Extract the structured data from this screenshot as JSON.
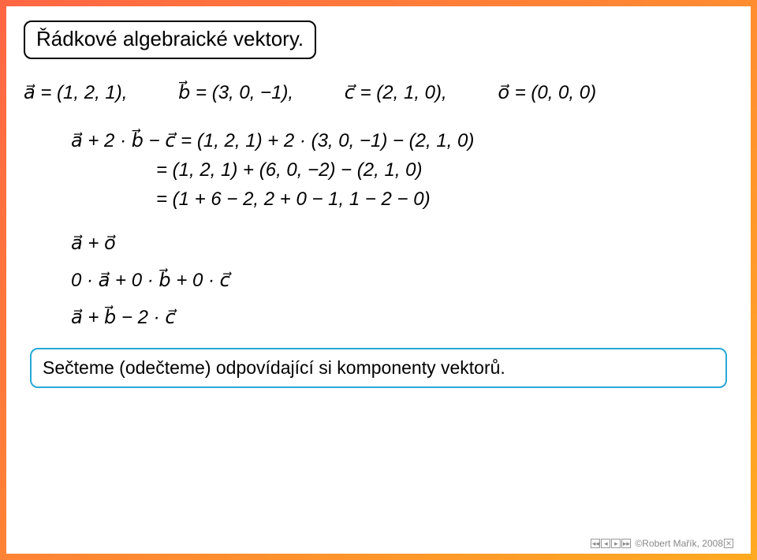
{
  "title": "Řádkové algebraické vektory.",
  "definitions": {
    "a": "a⃗ = (1, 2, 1),",
    "b": "b⃗ = (3, 0, −1),",
    "c": "c⃗ = (2, 1, 0),",
    "o": "o⃗ = (0, 0, 0)"
  },
  "equation": {
    "row1": "a⃗ + 2 · b⃗ − c⃗ = (1, 2, 1) + 2 · (3, 0, −1) − (2, 1, 0)",
    "row2": "= (1, 2, 1) + (6, 0, −2) − (2, 1, 0)",
    "row3": "= (1 + 6 − 2, 2 + 0 − 1, 1 − 2 − 0)"
  },
  "lines": {
    "l1": "a⃗ + o⃗",
    "l2": "0 · a⃗ + 0 · b⃗ + 0 · c⃗",
    "l3": "a⃗ + b⃗ − 2 · c⃗"
  },
  "callout": "Sečteme (odečteme) odpovídající si komponenty vektorů.",
  "footer": {
    "copyright": "©Robert Mařík, 2008",
    "nav": [
      "◂◂",
      "◂",
      "▸",
      "▸▸",
      "✕"
    ]
  },
  "colors": {
    "background_gradient_from": "#ff6644",
    "background_gradient_to": "#ffaa22",
    "page_bg": "#ffffff",
    "title_border": "#000000",
    "callout_border": "#29a7d6",
    "text": "#000000",
    "footer_text": "#888888"
  },
  "fonts": {
    "title_size": 26,
    "body_size": 24,
    "callout_size": 23,
    "footer_size": 12
  }
}
